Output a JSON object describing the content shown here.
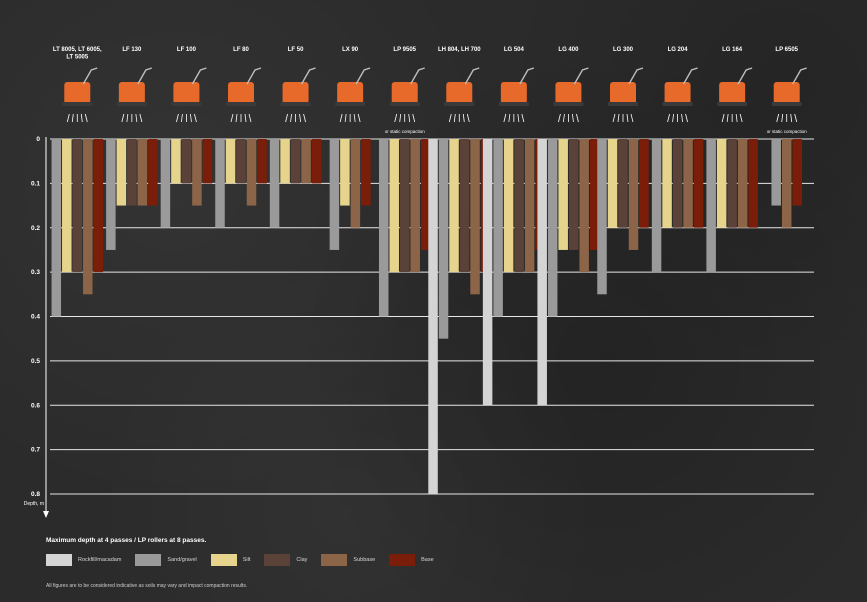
{
  "chart_data": {
    "type": "bar",
    "categories": [
      {
        "label": "LT 8005, LT 6005, LT 5005",
        "note": ""
      },
      {
        "label": "LF 130",
        "note": ""
      },
      {
        "label": "LF 100",
        "note": ""
      },
      {
        "label": "LF 80",
        "note": ""
      },
      {
        "label": "LF 50",
        "note": ""
      },
      {
        "label": "LX 90",
        "note": ""
      },
      {
        "label": "LP 9505",
        "note": "or static compaction"
      },
      {
        "label": "LH 804, LH 700",
        "note": ""
      },
      {
        "label": "LG 504",
        "note": ""
      },
      {
        "label": "LG 400",
        "note": ""
      },
      {
        "label": "LG 300",
        "note": ""
      },
      {
        "label": "LG 204",
        "note": ""
      },
      {
        "label": "LG 164",
        "note": ""
      },
      {
        "label": "LP 6505",
        "note": "or static compaction"
      }
    ],
    "series": [
      {
        "name": "Rockfill/macadam",
        "color": "#d4d4d4",
        "values": [
          null,
          null,
          null,
          null,
          null,
          null,
          null,
          0.8,
          0.6,
          0.6,
          null,
          null,
          null,
          null
        ]
      },
      {
        "name": "Sand/gravel",
        "color": "#9a9a9a",
        "values": [
          0.4,
          0.25,
          0.2,
          0.2,
          0.2,
          0.25,
          0.4,
          0.45,
          0.4,
          0.4,
          0.35,
          0.3,
          0.3,
          0.15
        ]
      },
      {
        "name": "Silt",
        "color": "#e6d48c",
        "values": [
          0.3,
          0.15,
          0.1,
          0.1,
          0.1,
          0.15,
          0.3,
          0.3,
          0.3,
          0.25,
          0.2,
          0.2,
          0.2,
          null
        ]
      },
      {
        "name": "Clay",
        "color": "#5a4238",
        "values": [
          0.3,
          0.15,
          0.1,
          0.1,
          0.1,
          null,
          0.3,
          0.3,
          0.3,
          0.25,
          0.2,
          0.2,
          0.2,
          null
        ]
      },
      {
        "name": "Subbase",
        "color": "#8c6448",
        "values": [
          0.35,
          0.15,
          0.15,
          0.15,
          0.1,
          0.2,
          0.3,
          0.35,
          0.3,
          0.3,
          0.25,
          0.2,
          0.2,
          0.2
        ]
      },
      {
        "name": "Base",
        "color": "#7a1e0a",
        "values": [
          0.3,
          0.15,
          0.1,
          0.1,
          0.1,
          0.15,
          0.25,
          0.3,
          0.25,
          0.25,
          0.2,
          0.2,
          0.2,
          0.15
        ]
      }
    ],
    "ylabel": "Depth, m",
    "ylim": [
      0,
      0.8
    ],
    "yticks": [
      "0",
      "0.1",
      "0.2",
      "0.3",
      "0.4",
      "0.5",
      "0.6",
      "0.7",
      "0.8"
    ],
    "axis_direction": "downward",
    "grid": true
  },
  "legend": {
    "title": "Maximum depth at 4 passes / LP rollers at 8 passes.",
    "items": [
      {
        "label": "Rockfill/macadam",
        "color": "#d4d4d4"
      },
      {
        "label": "Sand/gravel",
        "color": "#9a9a9a"
      },
      {
        "label": "Silt",
        "color": "#e6d48c"
      },
      {
        "label": "Clay",
        "color": "#5a4238"
      },
      {
        "label": "Subbase",
        "color": "#8c6448"
      },
      {
        "label": "Base",
        "color": "#7a1e0a"
      }
    ]
  },
  "footnote": "All figures are to be considered indicative as soils may vary and impact compaction results."
}
